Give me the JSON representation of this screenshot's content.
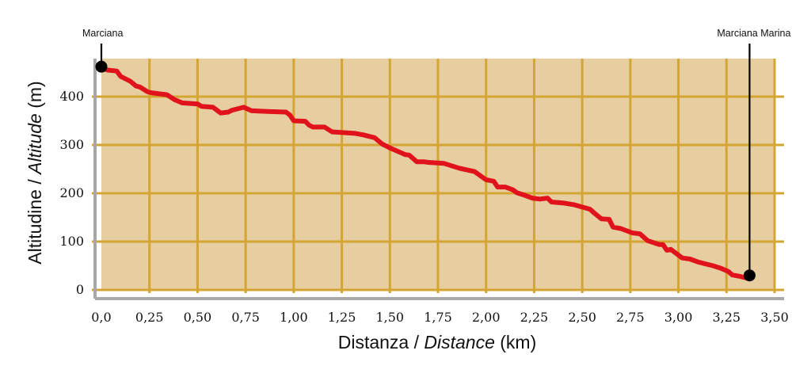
{
  "chart_data": {
    "type": "line",
    "title": "",
    "xlabel": {
      "main": "Distanza / ",
      "italic": "Distance",
      "unit": " (km)"
    },
    "ylabel": {
      "main": "Altitudine / ",
      "italic": "Altitude",
      "unit": " (m)"
    },
    "xlim": [
      0,
      3.5
    ],
    "ylim": [
      0,
      480
    ],
    "x_ticks": [
      0,
      0.25,
      0.5,
      0.75,
      1.0,
      1.25,
      1.5,
      1.75,
      2.0,
      2.25,
      2.5,
      2.75,
      3.0,
      3.25,
      3.5
    ],
    "x_tick_labels": [
      "0,0",
      "0,25",
      "0,50",
      "0,75",
      "1,00",
      "1,25",
      "1,50",
      "1,75",
      "2,00",
      "2,25",
      "2,50",
      "2,75",
      "3,00",
      "3,25",
      "3,50"
    ],
    "y_ticks": [
      0,
      100,
      200,
      300,
      400
    ],
    "y_tick_labels": [
      "0",
      "100",
      "200",
      "300",
      "400"
    ],
    "grid": true,
    "colors": {
      "plot_background": "#e6cea0",
      "grid": "#d4a533",
      "line": "#e0121b",
      "axis": "#a8a8a8",
      "marker": "#000000"
    },
    "series": [
      {
        "x": [
          0.0,
          0.03,
          0.08,
          0.1,
          0.15,
          0.18,
          0.2,
          0.22,
          0.24,
          0.26,
          0.34,
          0.38,
          0.42,
          0.5,
          0.52,
          0.58,
          0.62,
          0.66,
          0.68,
          0.74,
          0.78,
          0.82,
          0.88,
          0.96,
          0.98,
          1.0,
          1.06,
          1.08,
          1.1,
          1.16,
          1.18,
          1.2,
          1.24,
          1.32,
          1.36,
          1.42,
          1.46,
          1.5,
          1.58,
          1.6,
          1.64,
          1.68,
          1.7,
          1.78,
          1.86,
          1.94,
          2.0,
          2.04,
          2.06,
          2.1,
          2.14,
          2.16,
          2.2,
          2.24,
          2.28,
          2.32,
          2.34,
          2.4,
          2.46,
          2.54,
          2.56,
          2.6,
          2.64,
          2.66,
          2.7,
          2.76,
          2.8,
          2.84,
          2.9,
          2.92,
          2.94,
          2.96,
          2.98,
          3.02,
          3.06,
          3.1,
          3.14,
          3.18,
          3.22,
          3.26,
          3.28,
          3.32,
          3.36
        ],
        "y": [
          462,
          455,
          453,
          442,
          432,
          422,
          420,
          415,
          410,
          408,
          404,
          394,
          387,
          385,
          380,
          378,
          366,
          368,
          372,
          378,
          371,
          370,
          369,
          368,
          362,
          350,
          349,
          341,
          337,
          337,
          332,
          327,
          326,
          324,
          321,
          315,
          302,
          294,
          280,
          279,
          265,
          265,
          264,
          262,
          252,
          245,
          228,
          225,
          213,
          213,
          207,
          201,
          196,
          190,
          188,
          190,
          182,
          180,
          176,
          167,
          160,
          147,
          146,
          130,
          127,
          118,
          116,
          102,
          94,
          94,
          82,
          84,
          78,
          66,
          64,
          58,
          54,
          50,
          45,
          38,
          31,
          28,
          24
        ]
      }
    ],
    "markers": [
      {
        "name": "Marciana",
        "x": 0.0,
        "y": 462,
        "label_side": "top"
      },
      {
        "name": "Marciana Marina",
        "x": 3.37,
        "y": 30,
        "label_side": "top"
      }
    ]
  }
}
